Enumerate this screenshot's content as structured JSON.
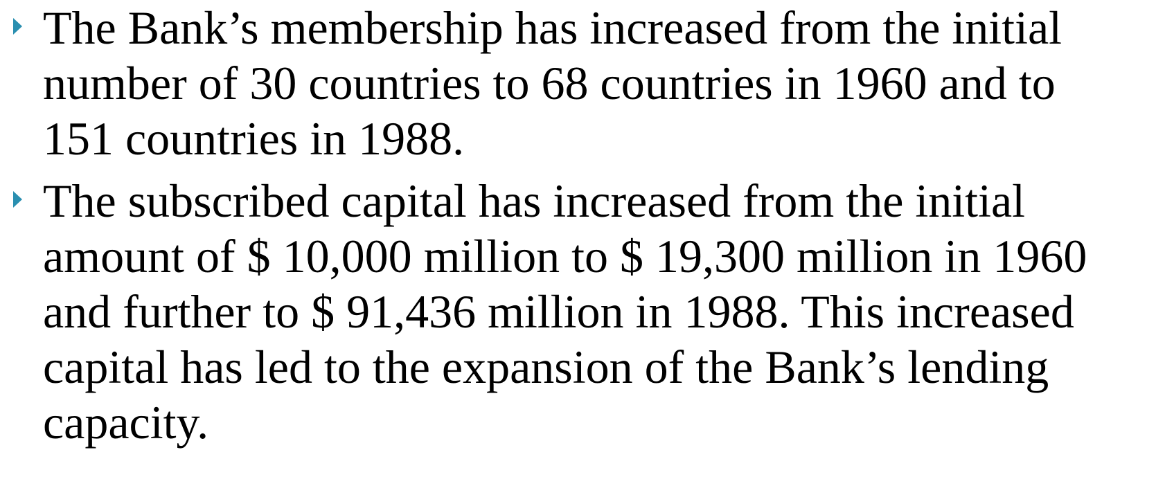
{
  "bullets": [
    {
      "lines": [
        "The Bank’s membership has increased from the initial",
        "number of 30 countries to 68 countries in 1960 and to",
        "151 countries in 1988."
      ]
    },
    {
      "lines": [
        "The subscribed capital has increased from the initial",
        "amount of $ 10,000 million to $ 19,300 million in 1960",
        "and further to $ 91,436 million in 1988. This increased",
        "capital has led to the expansion of the Bank’s lending",
        "capacity."
      ]
    }
  ]
}
